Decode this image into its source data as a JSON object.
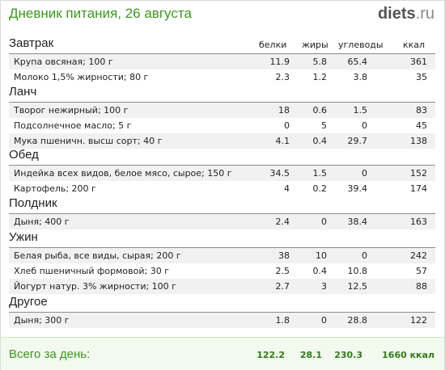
{
  "header": {
    "title": "Дневник питания, 26 августа",
    "logo_brand": "diets",
    "logo_tld": ".ru"
  },
  "columns": {
    "protein": "белки",
    "fat": "жиры",
    "carbs": "углеводы",
    "kcal": "ккал"
  },
  "meals": [
    {
      "name": "Завтрак",
      "items": [
        {
          "name": "Крупа овсяная; 100 г",
          "protein": "11.9",
          "fat": "5.8",
          "carbs": "65.4",
          "kcal": "361"
        },
        {
          "name": "Молоко 1,5% жирности; 80 г",
          "protein": "2.3",
          "fat": "1.2",
          "carbs": "3.8",
          "kcal": "35"
        }
      ]
    },
    {
      "name": "Ланч",
      "items": [
        {
          "name": "Творог нежирный; 100 г",
          "protein": "18",
          "fat": "0.6",
          "carbs": "1.5",
          "kcal": "83"
        },
        {
          "name": "Подсолнечное масло; 5 г",
          "protein": "0",
          "fat": "5",
          "carbs": "0",
          "kcal": "45"
        },
        {
          "name": "Мука пшеничн. высш сорт; 40 г",
          "protein": "4.1",
          "fat": "0.4",
          "carbs": "29.7",
          "kcal": "138"
        }
      ]
    },
    {
      "name": "Обед",
      "items": [
        {
          "name": "Индейка всех видов, белое мясо, сырое; 150 г",
          "protein": "34.5",
          "fat": "1.5",
          "carbs": "0",
          "kcal": "152"
        },
        {
          "name": "Картофель; 200 г",
          "protein": "4",
          "fat": "0.2",
          "carbs": "39.4",
          "kcal": "174"
        }
      ]
    },
    {
      "name": "Полдник",
      "items": [
        {
          "name": "Дыня; 400 г",
          "protein": "2.4",
          "fat": "0",
          "carbs": "38.4",
          "kcal": "163"
        }
      ]
    },
    {
      "name": "Ужин",
      "items": [
        {
          "name": "Белая рыба, все виды, сырая; 200 г",
          "protein": "38",
          "fat": "10",
          "carbs": "0",
          "kcal": "242"
        },
        {
          "name": "Хлеб пшеничный формовой; 30 г",
          "protein": "2.5",
          "fat": "0.4",
          "carbs": "10.8",
          "kcal": "57"
        },
        {
          "name": "Йогурт натур. 3% жирности; 100 г",
          "protein": "2.7",
          "fat": "3",
          "carbs": "12.5",
          "kcal": "88"
        }
      ]
    },
    {
      "name": "Другое",
      "items": [
        {
          "name": "Дыня; 300 г",
          "protein": "1.8",
          "fat": "0",
          "carbs": "28.8",
          "kcal": "122"
        }
      ]
    }
  ],
  "total": {
    "label": "Всего за день:",
    "protein": "122.2",
    "fat": "28.1",
    "carbs": "230.3",
    "kcal": "1660 ккал"
  }
}
